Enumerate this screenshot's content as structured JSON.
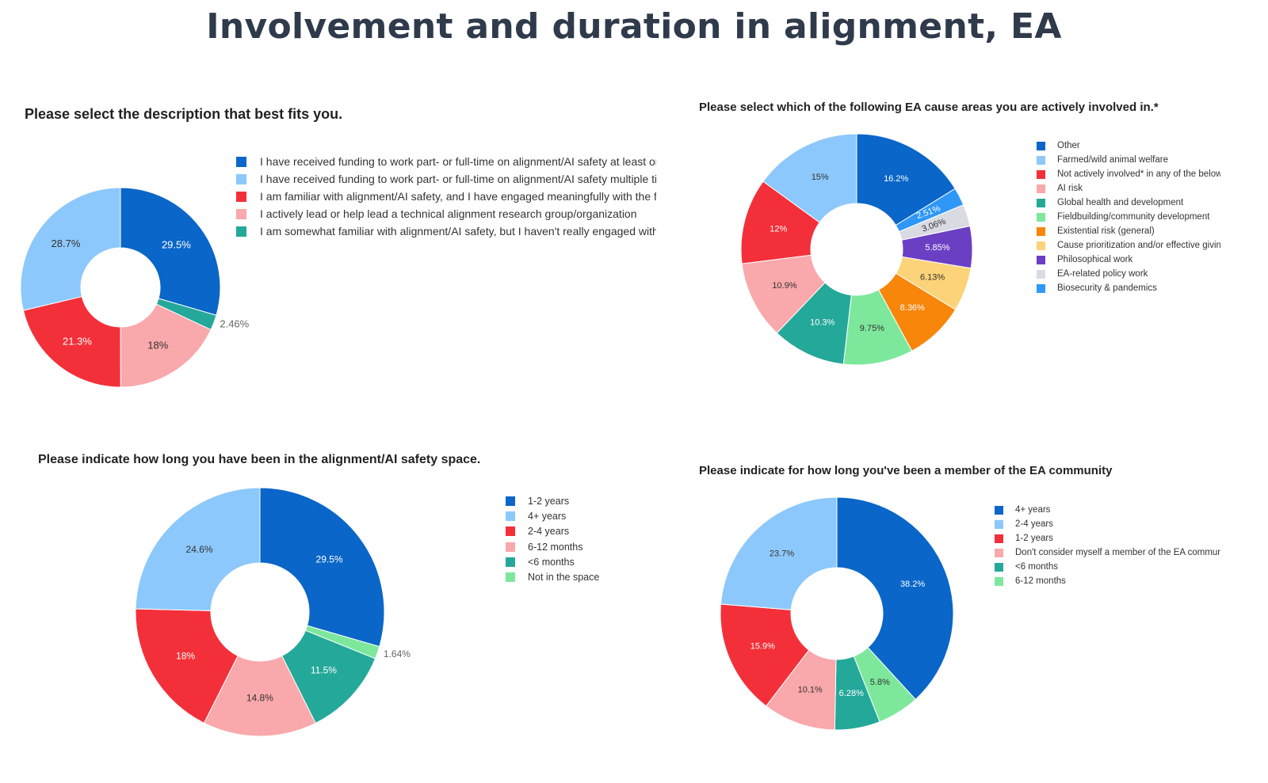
{
  "page_title": "Involvement and duration in alignment, EA",
  "chart_data": [
    {
      "id": "c1",
      "type": "pie",
      "title": "Please select the description that best fits you.",
      "series": [
        {
          "name": "I have received funding to work part- or full-time on alignment/AI safety at least onc",
          "value": 29.5,
          "label": "29.5%",
          "color": "#0a66c8"
        },
        {
          "name": "I have received funding to work part- or full-time on alignment/AI safety multiple tim",
          "value": 28.7,
          "label": "28.7%",
          "color": "#8cc8fb"
        },
        {
          "name": "I am familiar with alignment/AI safety, and I have engaged meaningfully with the fie",
          "value": 21.3,
          "label": "21.3%",
          "color": "#f3303a"
        },
        {
          "name": "I actively lead or help lead a technical alignment research group/organization",
          "value": 18,
          "label": "18%",
          "color": "#f9a8ab"
        },
        {
          "name": "I am somewhat familiar with alignment/AI safety, but I haven't really engaged with i",
          "value": 2.46,
          "label": "2.46%",
          "color": "#24a89a"
        }
      ],
      "slice_order": [
        0,
        4,
        3,
        2,
        1
      ],
      "legend_position": "right"
    },
    {
      "id": "c2",
      "type": "pie",
      "title": "Please select which of the following EA cause areas you are actively involved in.*",
      "series": [
        {
          "name": "Other",
          "value": 16.2,
          "label": "16.2%",
          "color": "#0a66c8"
        },
        {
          "name": "Farmed/wild animal welfare",
          "value": 15,
          "label": "15%",
          "color": "#8cc8fb"
        },
        {
          "name": "Not actively involved* in any of the below",
          "value": 12,
          "label": "12%",
          "color": "#f3303a"
        },
        {
          "name": "AI risk",
          "value": 10.9,
          "label": "10.9%",
          "color": "#f9a8ab"
        },
        {
          "name": "Global health and development",
          "value": 10.3,
          "label": "10.3%",
          "color": "#24a89a"
        },
        {
          "name": "Fieldbuilding/community development",
          "value": 9.75,
          "label": "9.75%",
          "color": "#7de89c"
        },
        {
          "name": "Existential risk (general)",
          "value": 8.36,
          "label": "8.36%",
          "color": "#f7860b"
        },
        {
          "name": "Cause prioritization and/or effective givin",
          "value": 6.13,
          "label": "6.13%",
          "color": "#fcd378"
        },
        {
          "name": "Philosophical work",
          "value": 5.85,
          "label": "5.85%",
          "color": "#6b3fc4"
        },
        {
          "name": "EA-related policy work",
          "value": 3.06,
          "label": "3.06%",
          "color": "#d8dbe2"
        },
        {
          "name": "Biosecurity & pandemics",
          "value": 2.51,
          "label": "2.51%",
          "color": "#2f97f7"
        }
      ],
      "slice_order": [
        0,
        10,
        9,
        8,
        7,
        6,
        5,
        4,
        3,
        2,
        1
      ],
      "legend_position": "right"
    },
    {
      "id": "c3",
      "type": "pie",
      "title": "Please indicate how long you have been in the alignment/AI safety space.",
      "series": [
        {
          "name": "1-2 years",
          "value": 29.5,
          "label": "29.5%",
          "color": "#0a66c8"
        },
        {
          "name": "4+ years",
          "value": 24.6,
          "label": "24.6%",
          "color": "#8cc8fb"
        },
        {
          "name": "2-4 years",
          "value": 18,
          "label": "18%",
          "color": "#f3303a"
        },
        {
          "name": "6-12 months",
          "value": 14.8,
          "label": "14.8%",
          "color": "#f9a8ab"
        },
        {
          "name": "<6 months",
          "value": 11.5,
          "label": "11.5%",
          "color": "#24a89a"
        },
        {
          "name": "Not in the space",
          "value": 1.64,
          "label": "1.64%",
          "color": "#7de89c"
        }
      ],
      "slice_order": [
        0,
        5,
        4,
        3,
        2,
        1
      ],
      "legend_position": "right"
    },
    {
      "id": "c4",
      "type": "pie",
      "title": "Please indicate for how long you've been a member of the EA community",
      "series": [
        {
          "name": "4+ years",
          "value": 38.2,
          "label": "38.2%",
          "color": "#0a66c8"
        },
        {
          "name": "2-4 years",
          "value": 23.7,
          "label": "23.7%",
          "color": "#8cc8fb"
        },
        {
          "name": "1-2 years",
          "value": 15.9,
          "label": "15.9%",
          "color": "#f3303a"
        },
        {
          "name": "Don't consider myself a member of the EA commun",
          "value": 10.1,
          "label": "10.1%",
          "color": "#f9a8ab"
        },
        {
          "name": "<6 months",
          "value": 6.28,
          "label": "6.28%",
          "color": "#24a89a"
        },
        {
          "name": "6-12 months",
          "value": 5.8,
          "label": "5.8%",
          "color": "#7de89c"
        }
      ],
      "slice_order": [
        0,
        5,
        4,
        3,
        2,
        1
      ],
      "legend_position": "right"
    }
  ]
}
